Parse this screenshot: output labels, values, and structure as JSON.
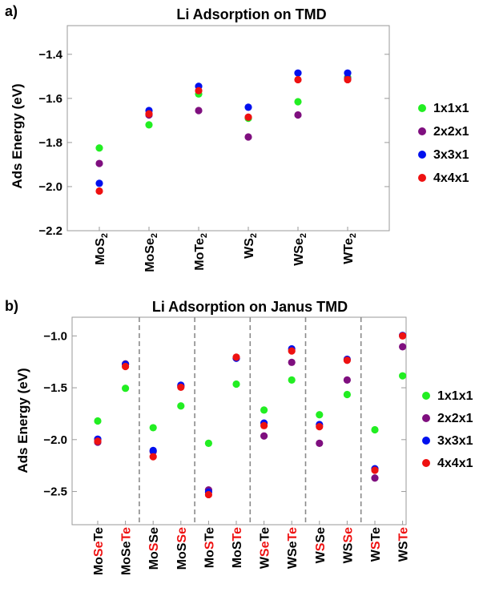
{
  "colors": {
    "s1x1x1": "#22ee22",
    "s2x2x1": "#7f0f7f",
    "s3x3x1": "#0010ee",
    "s4x4x1": "#ee1111",
    "highlight": "#ee1111",
    "text": "#000000"
  },
  "chart_data": [
    {
      "id": "a",
      "panel_label": "a)",
      "type": "scatter",
      "title": "Li Adsorption on TMD",
      "ylabel": "Ads Energy (eV)",
      "ylim": [
        -2.2,
        -1.27
      ],
      "yticks": [
        -2.2,
        -2.0,
        -1.8,
        -1.6,
        -1.4
      ],
      "ytick_labels": [
        "−2.2",
        "−2.0",
        "−1.8",
        "−1.6",
        "−1.4"
      ],
      "categories": [
        {
          "label": "MoS2",
          "parts": [
            {
              "t": "MoS"
            },
            {
              "t": "2",
              "sub": true
            }
          ]
        },
        {
          "label": "MoSe2",
          "parts": [
            {
              "t": "MoSe"
            },
            {
              "t": "2",
              "sub": true
            }
          ]
        },
        {
          "label": "MoTe2",
          "parts": [
            {
              "t": "MoTe"
            },
            {
              "t": "2",
              "sub": true
            }
          ]
        },
        {
          "label": "WS2",
          "parts": [
            {
              "t": "WS"
            },
            {
              "t": "2",
              "sub": true
            }
          ]
        },
        {
          "label": "WSe2",
          "parts": [
            {
              "t": "WSe"
            },
            {
              "t": "2",
              "sub": true
            }
          ]
        },
        {
          "label": "WTe2",
          "parts": [
            {
              "t": "WTe"
            },
            {
              "t": "2",
              "sub": true
            }
          ]
        }
      ],
      "series": [
        {
          "name": "1x1x1",
          "color_key": "s1x1x1",
          "values": [
            -1.825,
            -1.72,
            -1.58,
            -1.69,
            -1.615,
            -1.505
          ]
        },
        {
          "name": "2x2x1",
          "color_key": "s2x2x1",
          "values": [
            -1.895,
            -1.675,
            -1.655,
            -1.775,
            -1.675,
            -1.51
          ]
        },
        {
          "name": "3x3x1",
          "color_key": "s3x3x1",
          "values": [
            -1.985,
            -1.655,
            -1.545,
            -1.64,
            -1.485,
            -1.485
          ]
        },
        {
          "name": "4x4x1",
          "color_key": "s4x4x1",
          "values": [
            -2.02,
            -1.67,
            -1.565,
            -1.685,
            -1.515,
            -1.515
          ]
        }
      ],
      "legend_placement": "right",
      "grid": false
    },
    {
      "id": "b",
      "panel_label": "b)",
      "type": "scatter",
      "title": "Li Adsorption on Janus TMD",
      "ylabel": "Ads Energy (eV)",
      "ylim": [
        -2.82,
        -0.82
      ],
      "yticks": [
        -2.5,
        -2.0,
        -1.5,
        -1.0
      ],
      "ytick_labels": [
        "−2.5",
        "−2.0",
        "−1.5",
        "−1.0"
      ],
      "categories": [
        {
          "label": "MoSeTe",
          "parts": [
            {
              "t": "Mo"
            },
            {
              "t": "Se",
              "hl": true
            },
            {
              "t": "Te"
            }
          ]
        },
        {
          "label": "MoSeTe",
          "parts": [
            {
              "t": "MoSe"
            },
            {
              "t": "Te",
              "hl": true
            }
          ]
        },
        {
          "label": "MoSSe",
          "parts": [
            {
              "t": "Mo"
            },
            {
              "t": "S",
              "hl": true
            },
            {
              "t": "Se"
            }
          ]
        },
        {
          "label": "MoSSe",
          "parts": [
            {
              "t": "MoS"
            },
            {
              "t": "Se",
              "hl": true
            }
          ]
        },
        {
          "label": "MoSTe",
          "parts": [
            {
              "t": "Mo"
            },
            {
              "t": "S",
              "hl": true
            },
            {
              "t": "Te"
            }
          ]
        },
        {
          "label": "MoSTe",
          "parts": [
            {
              "t": "MoS"
            },
            {
              "t": "Te",
              "hl": true
            }
          ]
        },
        {
          "label": "WSeTe",
          "parts": [
            {
              "t": "W"
            },
            {
              "t": "Se",
              "hl": true
            },
            {
              "t": "Te"
            }
          ]
        },
        {
          "label": "WSeTe",
          "parts": [
            {
              "t": "WSe"
            },
            {
              "t": "Te",
              "hl": true
            }
          ]
        },
        {
          "label": "WSSe",
          "parts": [
            {
              "t": "W"
            },
            {
              "t": "S",
              "hl": true
            },
            {
              "t": "Se"
            }
          ]
        },
        {
          "label": "WSSe",
          "parts": [
            {
              "t": "WS"
            },
            {
              "t": "Se",
              "hl": true
            }
          ]
        },
        {
          "label": "WSTe",
          "parts": [
            {
              "t": "W"
            },
            {
              "t": "S",
              "hl": true
            },
            {
              "t": "Te"
            }
          ]
        },
        {
          "label": "WSTe",
          "parts": [
            {
              "t": "WS"
            },
            {
              "t": "Te",
              "hl": true
            }
          ]
        }
      ],
      "series": [
        {
          "name": "1x1x1",
          "color_key": "s1x1x1",
          "values": [
            -1.82,
            -1.505,
            -1.885,
            -1.675,
            -2.035,
            -1.465,
            -1.715,
            -1.425,
            -1.76,
            -1.565,
            -1.905,
            -1.385
          ]
        },
        {
          "name": "2x2x1",
          "color_key": "s2x2x1",
          "values": [
            -2.025,
            -1.27,
            -2.115,
            -1.485,
            -2.485,
            -1.215,
            -1.965,
            -1.255,
            -2.035,
            -1.425,
            -2.37,
            -1.105
          ]
        },
        {
          "name": "3x3x1",
          "color_key": "s3x3x1",
          "values": [
            -1.995,
            -1.275,
            -2.105,
            -1.475,
            -2.505,
            -1.215,
            -1.84,
            -1.125,
            -1.855,
            -1.225,
            -2.28,
            -0.995
          ]
        },
        {
          "name": "4x4x1",
          "color_key": "s4x4x1",
          "values": [
            -2.015,
            -1.295,
            -2.165,
            -1.495,
            -2.53,
            -1.205,
            -1.865,
            -1.145,
            -1.875,
            -1.235,
            -2.295,
            -1.0
          ]
        }
      ],
      "group_separators_after": [
        1,
        3,
        5,
        7,
        9
      ],
      "legend_placement": "right",
      "grid": false
    }
  ]
}
